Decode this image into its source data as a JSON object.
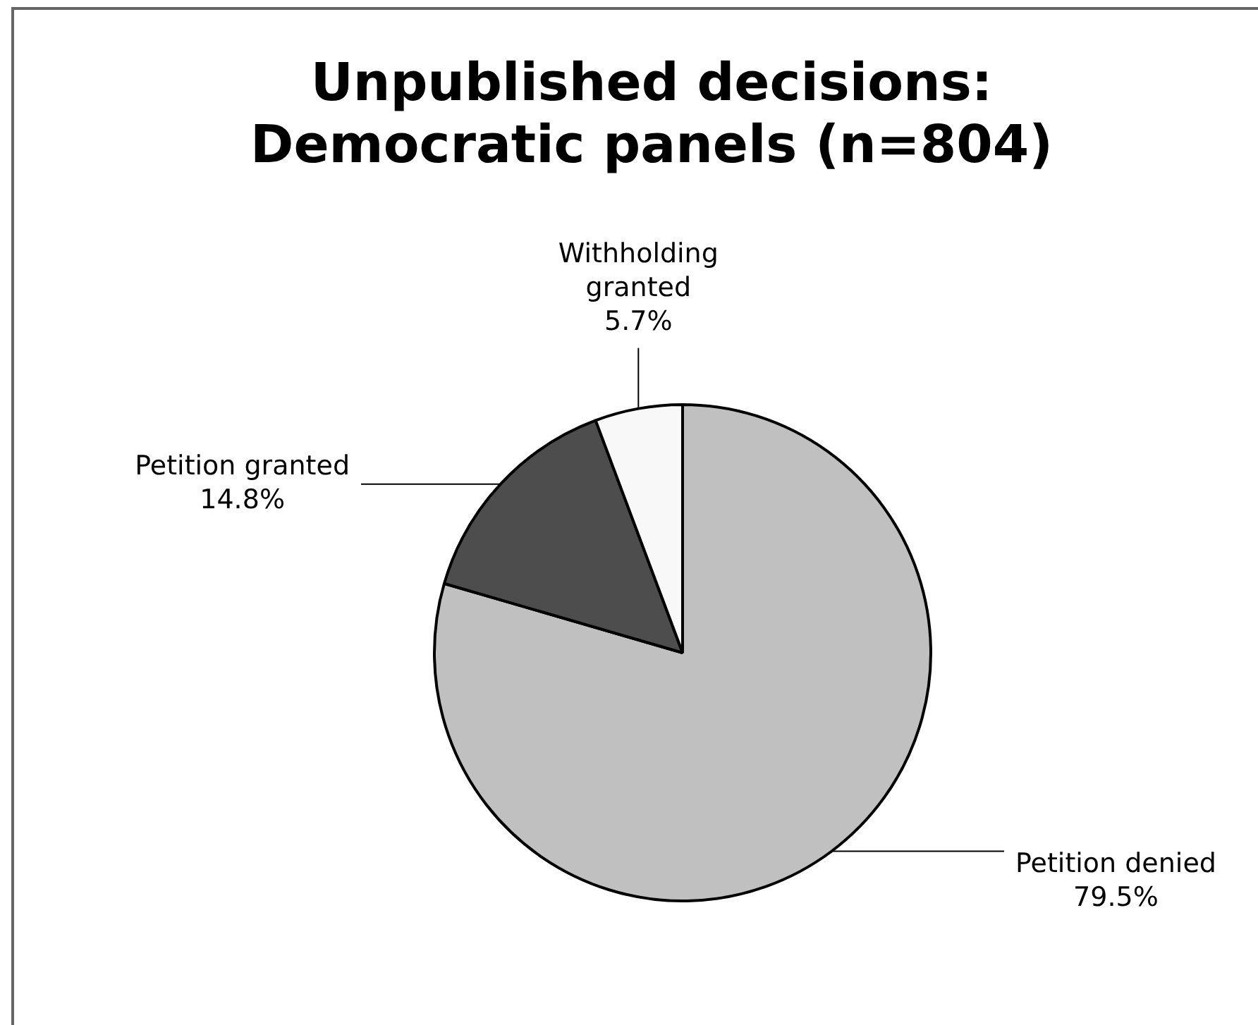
{
  "chart_data": {
    "type": "pie",
    "title": "Unpublished decisions: Democratic panels (n=804)",
    "categories": [
      "Petition denied",
      "Petition granted",
      "Withholding granted"
    ],
    "values": [
      79.5,
      14.8,
      5.7
    ],
    "colors": [
      "#c0c0c0",
      "#4d4d4d",
      "#f8f8f8"
    ],
    "value_labels": [
      "79.5%",
      "14.8%",
      "5.7%"
    ],
    "legend": false
  }
}
